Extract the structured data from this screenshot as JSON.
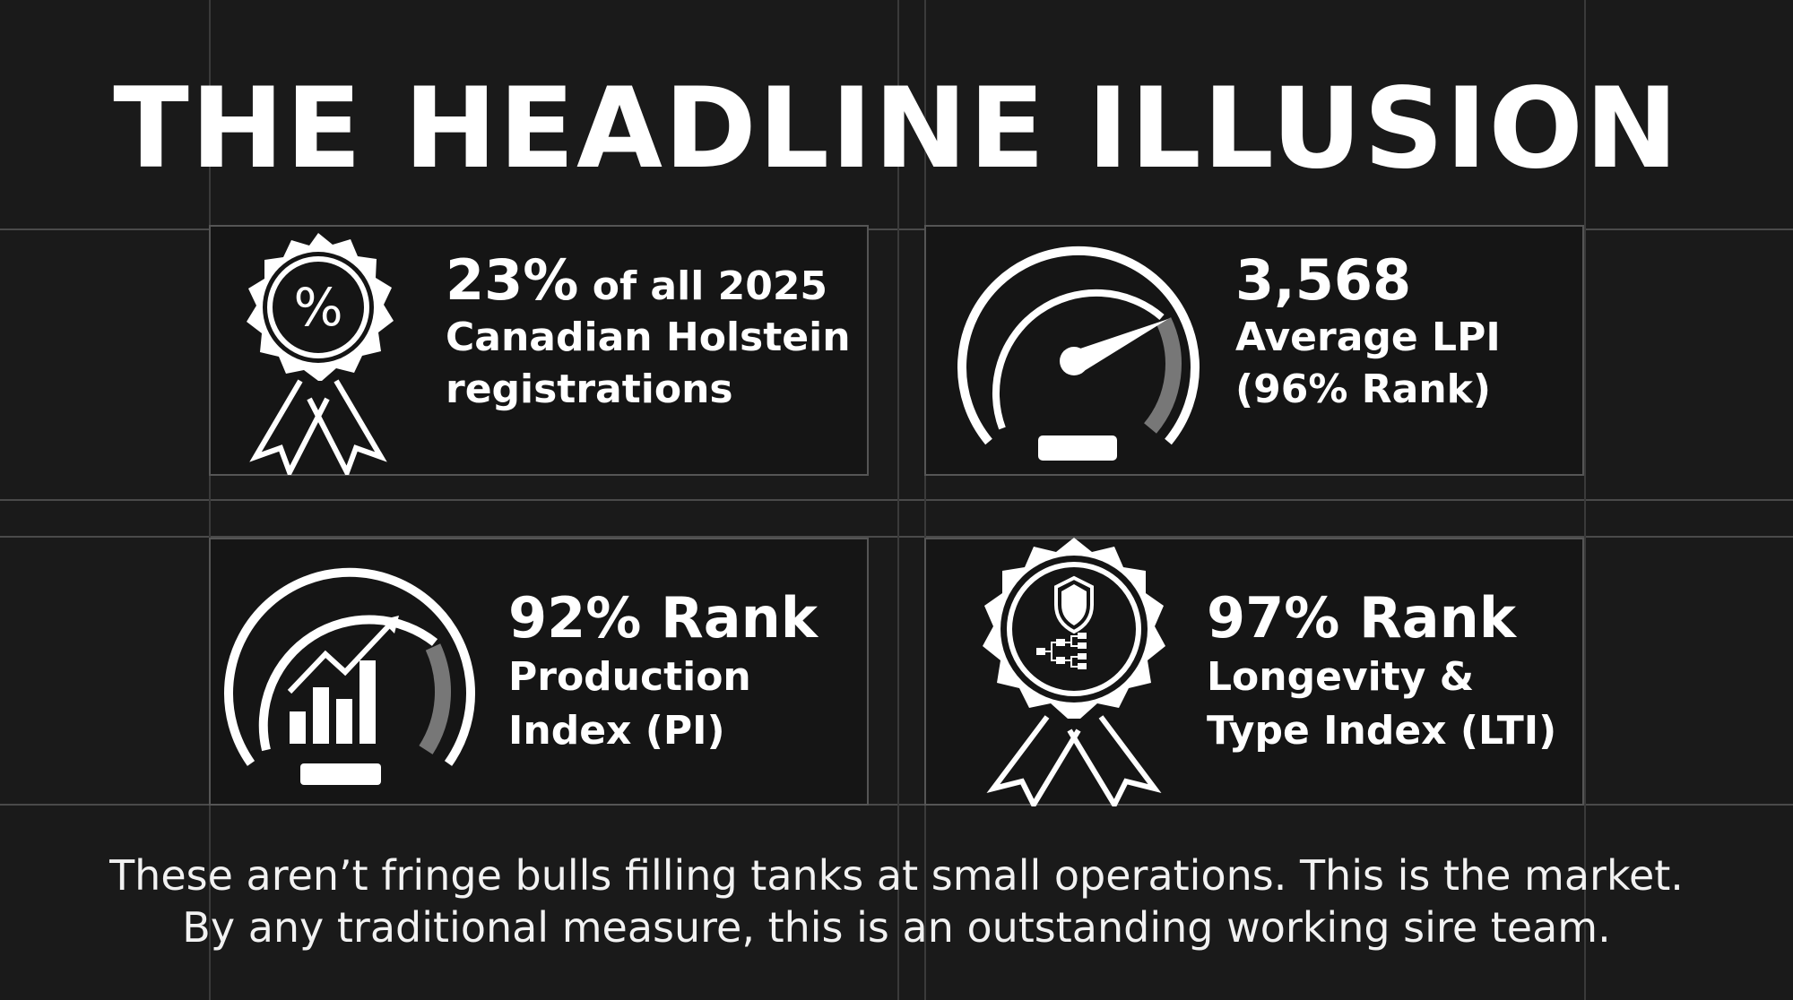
{
  "title": "THE HEADLINE ILLUSION",
  "cards": [
    {
      "icon": "percent-rosette-icon",
      "headline": "23%",
      "headline_suffix": " of all 2025",
      "lines": [
        "Canadian Holstein",
        "registrations"
      ]
    },
    {
      "icon": "speedometer-gauge-icon",
      "headline": "3,568",
      "lines": [
        "Average LPI",
        "(96% Rank)"
      ]
    },
    {
      "icon": "growth-chart-gauge-icon",
      "headline": "92% Rank",
      "lines": [
        "Production",
        "Index (PI)"
      ]
    },
    {
      "icon": "shield-pedigree-rosette-icon",
      "headline": "97% Rank",
      "lines": [
        "Longevity &",
        "Type Index (LTI)"
      ]
    }
  ],
  "footer": [
    "These aren’t fringe bulls filling tanks at small operations. This is the market.",
    "By any traditional measure, this is an outstanding working sire team."
  ],
  "colors": {
    "background": "#1a1a1a",
    "text": "#ffffff",
    "grid": "#4a4a4a",
    "gauge_dim": "#777777"
  }
}
